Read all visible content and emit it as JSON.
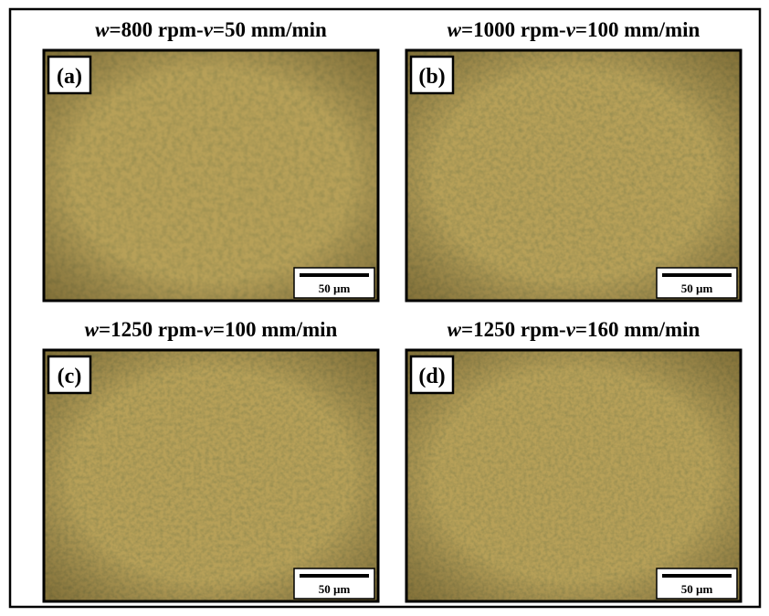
{
  "panels": [
    {
      "title": [
        {
          "text": "w",
          "italic": true
        },
        {
          "text": "=800 rpm-"
        },
        {
          "text": "v",
          "italic": true
        },
        {
          "text": "=50 mm/min"
        }
      ],
      "label": "(a)",
      "scale": "50 µm"
    },
    {
      "title": [
        {
          "text": "w",
          "italic": true
        },
        {
          "text": "=1000 rpm-"
        },
        {
          "text": "v",
          "italic": true
        },
        {
          "text": "=100 mm/min"
        }
      ],
      "label": "(b)",
      "scale": "50 µm"
    },
    {
      "title": [
        {
          "text": "w",
          "italic": true
        },
        {
          "text": "=1250 rpm-"
        },
        {
          "text": "v",
          "italic": true
        },
        {
          "text": "=100 mm/min"
        }
      ],
      "label": "(c)",
      "scale": "50 µm"
    },
    {
      "title": [
        {
          "text": "w",
          "italic": true
        },
        {
          "text": "=1250 rpm-"
        },
        {
          "text": "v",
          "italic": true
        },
        {
          "text": "=160 mm/min"
        }
      ],
      "label": "(d)",
      "scale": "50 µm"
    }
  ]
}
